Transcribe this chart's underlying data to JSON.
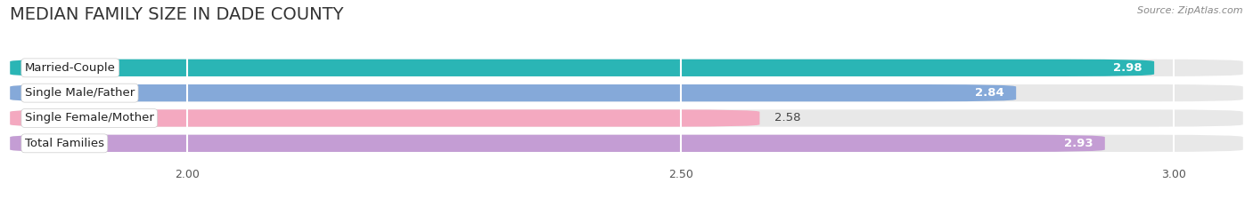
{
  "title": "MEDIAN FAMILY SIZE IN DADE COUNTY",
  "source": "Source: ZipAtlas.com",
  "categories": [
    "Married-Couple",
    "Single Male/Father",
    "Single Female/Mother",
    "Total Families"
  ],
  "values": [
    2.98,
    2.84,
    2.58,
    2.93
  ],
  "bar_colors": [
    "#2ab5b5",
    "#85a9d9",
    "#f4a9c0",
    "#c49dd4"
  ],
  "label_colors": [
    "white",
    "white",
    "#444444",
    "white"
  ],
  "xlim": [
    1.82,
    3.07
  ],
  "xticks": [
    2.0,
    2.5,
    3.0
  ],
  "xtick_labels": [
    "2.00",
    "2.50",
    "3.00"
  ],
  "background_color": "#ffffff",
  "bar_background_color": "#e8e8e8",
  "title_fontsize": 14,
  "bar_height": 0.68,
  "label_fontsize": 9.5,
  "value_fontsize": 9.5,
  "bar_gap": 0.32
}
